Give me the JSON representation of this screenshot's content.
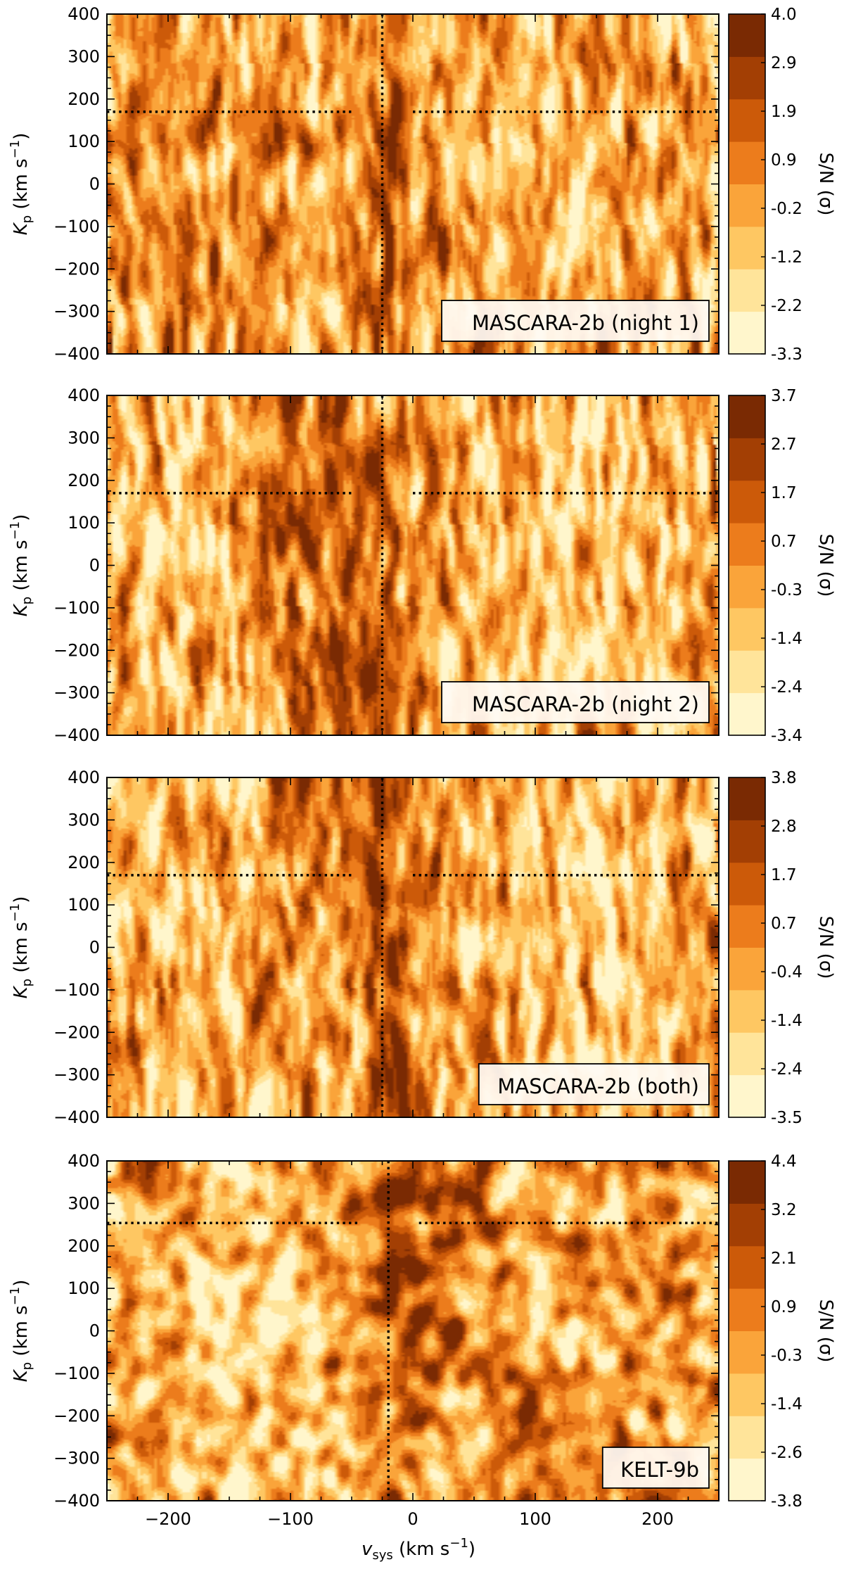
{
  "figure": {
    "xlabel": "v_sys (km s^-1)",
    "xlabel_parts": {
      "sym": "v",
      "sub": "sys",
      "unit": " (km s",
      "exp": "−1",
      "close": ")"
    },
    "ylabel_parts": {
      "sym": "K",
      "sub": "p",
      "unit": " (km s",
      "exp": "−1",
      "close": ")"
    },
    "colorbar_label": "S/N (σ)"
  },
  "colors": {
    "levels": [
      "#fff6cc",
      "#ffe49a",
      "#fec762",
      "#faa43a",
      "#ec7c1c",
      "#cc5a09",
      "#a33f04",
      "#7a2a03"
    ]
  },
  "chart_data": [
    {
      "type": "heatmap",
      "name": "MASCARA-2b (night 1)",
      "legend": "MASCARA-2b (night 1)",
      "legend_position": "bottom-right",
      "xlim": [
        -250,
        250
      ],
      "ylim": [
        -400,
        400
      ],
      "x_ticks": [
        -200,
        -100,
        0,
        100,
        200
      ],
      "y_ticks": [
        -400,
        -300,
        -200,
        -100,
        0,
        100,
        200,
        300,
        400
      ],
      "colorbar_ticks": [
        "-3.3",
        "-2.2",
        "-1.2",
        "-0.2",
        "0.9",
        "1.9",
        "2.9",
        "4.0"
      ],
      "vline_x": -25,
      "hline_y": 170,
      "hline_gap": [
        -50,
        0
      ],
      "show_xticklabels": false,
      "grid": false
    },
    {
      "type": "heatmap",
      "name": "MASCARA-2b (night 2)",
      "legend": "MASCARA-2b (night 2)",
      "legend_position": "bottom-right",
      "xlim": [
        -250,
        250
      ],
      "ylim": [
        -400,
        400
      ],
      "x_ticks": [
        -200,
        -100,
        0,
        100,
        200
      ],
      "y_ticks": [
        -400,
        -300,
        -200,
        -100,
        0,
        100,
        200,
        300,
        400
      ],
      "colorbar_ticks": [
        "-3.4",
        "-2.4",
        "-1.4",
        "-0.3",
        "0.7",
        "1.7",
        "2.7",
        "3.7"
      ],
      "vline_x": -25,
      "hline_y": 170,
      "hline_gap": [
        -50,
        0
      ],
      "show_xticklabels": false,
      "grid": false
    },
    {
      "type": "heatmap",
      "name": "MASCARA-2b (both)",
      "legend": "MASCARA-2b (both)",
      "legend_position": "bottom-right",
      "xlim": [
        -250,
        250
      ],
      "ylim": [
        -400,
        400
      ],
      "x_ticks": [
        -200,
        -100,
        0,
        100,
        200
      ],
      "y_ticks": [
        -400,
        -300,
        -200,
        -100,
        0,
        100,
        200,
        300,
        400
      ],
      "colorbar_ticks": [
        "-3.5",
        "-2.4",
        "-1.4",
        "-0.4",
        "0.7",
        "1.7",
        "2.8",
        "3.8"
      ],
      "vline_x": -25,
      "hline_y": 170,
      "hline_gap": [
        -50,
        0
      ],
      "show_xticklabels": false,
      "grid": false
    },
    {
      "type": "heatmap",
      "name": "KELT-9b",
      "legend": "KELT-9b",
      "legend_position": "bottom-right",
      "xlim": [
        -250,
        250
      ],
      "ylim": [
        -400,
        400
      ],
      "x_ticks": [
        -200,
        -100,
        0,
        100,
        200
      ],
      "y_ticks": [
        -400,
        -300,
        -200,
        -100,
        0,
        100,
        200,
        300,
        400
      ],
      "colorbar_ticks": [
        "-3.8",
        "-2.6",
        "-1.4",
        "-0.3",
        "0.9",
        "2.1",
        "3.2",
        "4.4"
      ],
      "vline_x": -20,
      "hline_y": 254,
      "hline_gap": [
        -45,
        5
      ],
      "show_xticklabels": true,
      "grid": false
    }
  ]
}
